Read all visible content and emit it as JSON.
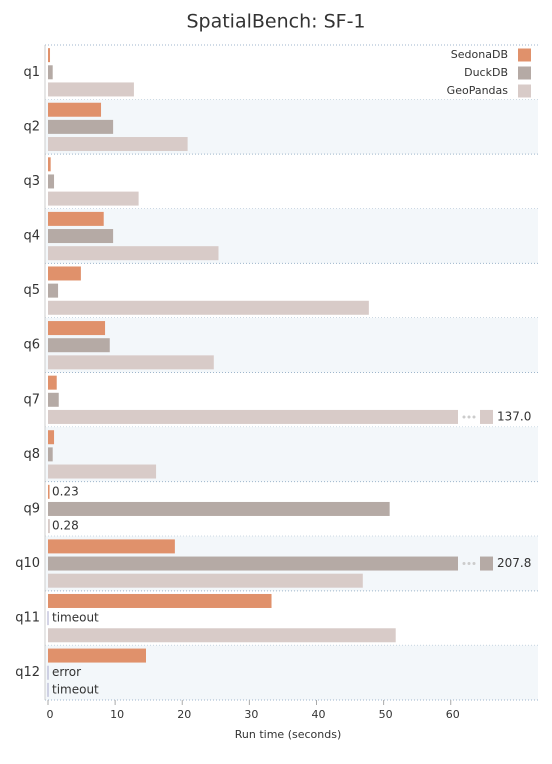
{
  "chart_data": {
    "type": "bar",
    "orientation": "horizontal",
    "title": "SpatialBench: SF-1",
    "x_label": "Run time (seconds)",
    "categories": [
      "q1",
      "q2",
      "q3",
      "q4",
      "q5",
      "q6",
      "q7",
      "q8",
      "q9",
      "q10",
      "q11",
      "q12"
    ],
    "series": [
      {
        "name": "SedonaDB",
        "color": "#e0916b",
        "values": [
          0.3,
          7.9,
          0.4,
          8.3,
          4.9,
          8.5,
          1.3,
          0.9,
          0.23,
          18.9,
          33.3,
          14.6
        ],
        "value_labels": [
          null,
          null,
          null,
          null,
          null,
          null,
          null,
          null,
          "0.23",
          null,
          null,
          null
        ]
      },
      {
        "name": "DuckDB",
        "color": "#b5aaa5",
        "values": [
          0.7,
          9.7,
          0.9,
          9.7,
          1.5,
          9.2,
          1.6,
          0.7,
          50.9,
          207.8,
          null,
          null
        ],
        "value_labels": [
          null,
          null,
          null,
          null,
          null,
          null,
          null,
          null,
          null,
          "207.8",
          "timeout",
          "error"
        ]
      },
      {
        "name": "GeoPandas",
        "color": "#d8cbc8",
        "values": [
          12.8,
          20.8,
          13.5,
          25.4,
          47.8,
          24.7,
          137.0,
          16.1,
          0.28,
          46.9,
          51.8,
          null
        ],
        "value_labels": [
          null,
          null,
          null,
          null,
          null,
          null,
          "137.0",
          null,
          "0.28",
          null,
          null,
          "timeout"
        ]
      }
    ],
    "xlim": [
      0,
      73
    ],
    "xticks": [
      0,
      10,
      20,
      30,
      40,
      50,
      60
    ],
    "legend": "top-right"
  }
}
